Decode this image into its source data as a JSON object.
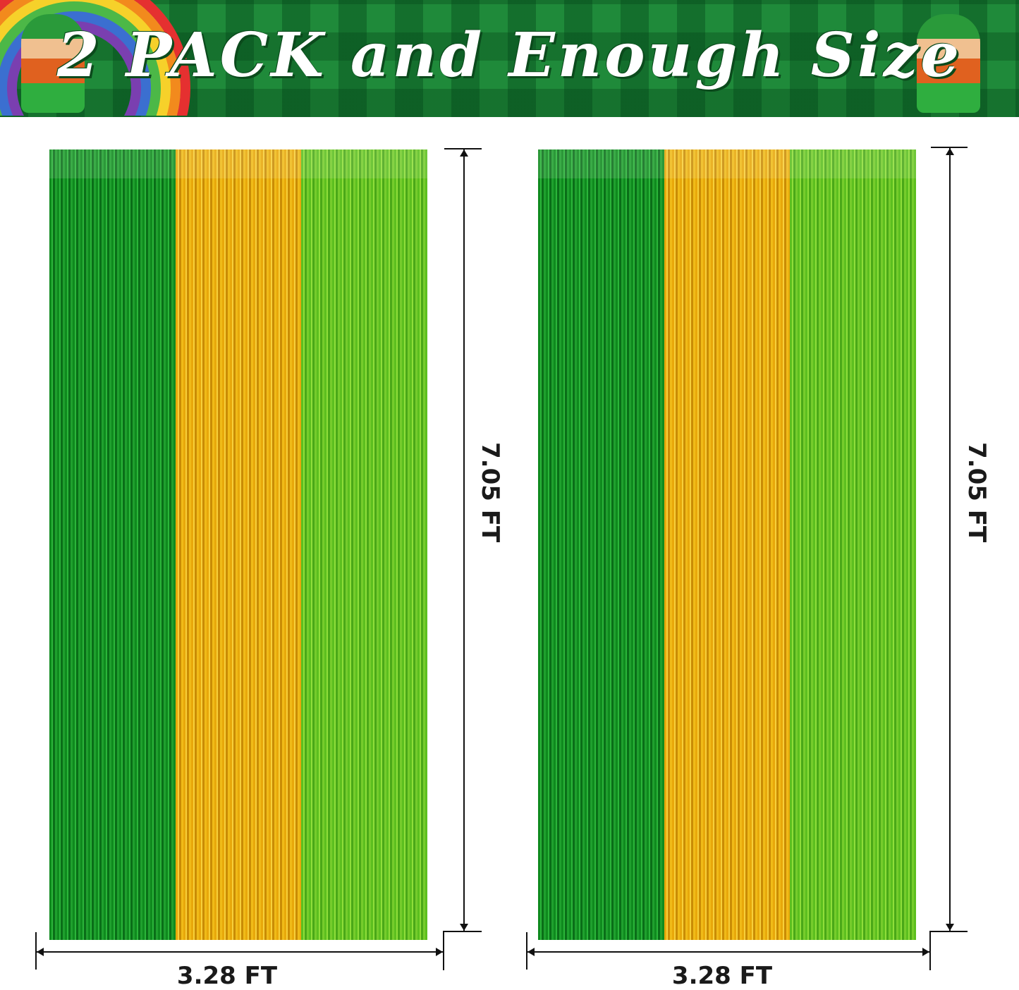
{
  "banner": {
    "title": "2 PACK and Enough Size"
  },
  "curtains": [
    {
      "height_label": "7.05 FT",
      "width_label": "3.28 FT",
      "colors": [
        "#1a9a28",
        "#f2bb1a",
        "#6ccb26"
      ]
    },
    {
      "height_label": "7.05 FT",
      "width_label": "3.28 FT",
      "colors": [
        "#1a9a28",
        "#f2bb1a",
        "#6ccb26"
      ]
    }
  ]
}
